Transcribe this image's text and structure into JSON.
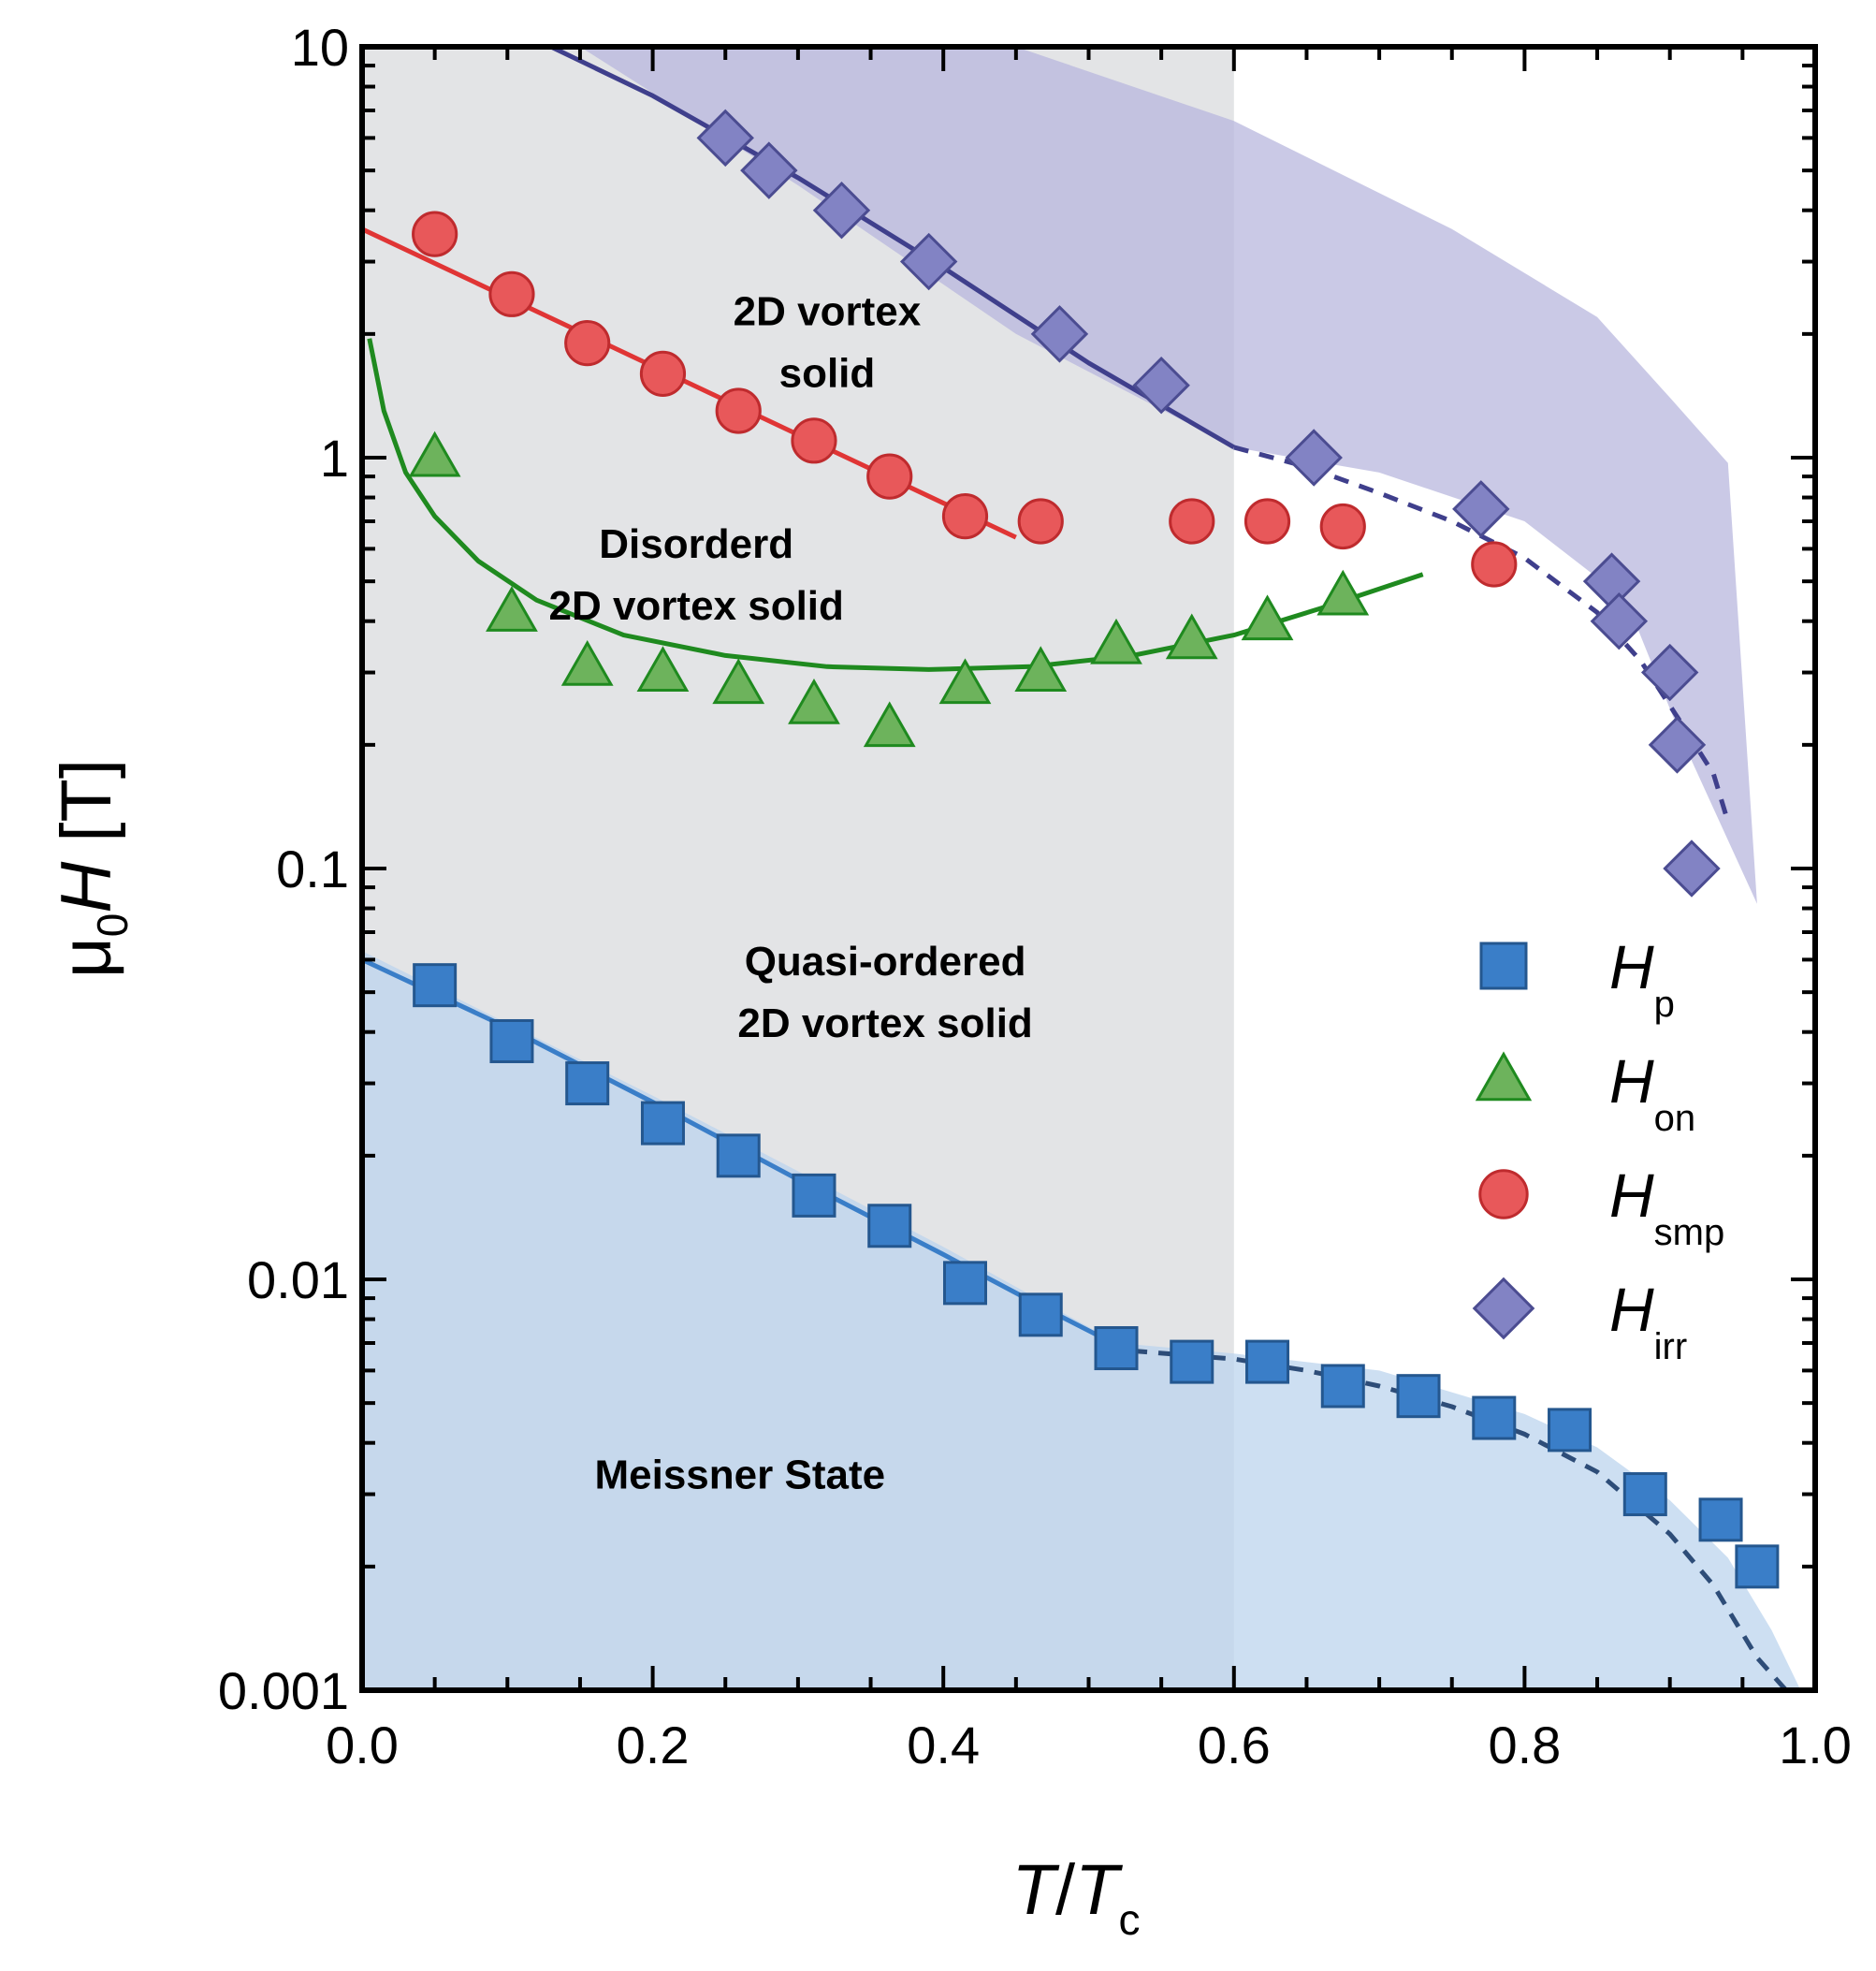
{
  "chart_data": {
    "type": "scatter",
    "xlabel": {
      "main": "T",
      "sep": "/",
      "main2": "T",
      "sub2": "c"
    },
    "ylabel": {
      "mu": "μ",
      "sub": "0",
      "main": "H",
      "unit": " [T]"
    },
    "xlim": [
      0,
      1
    ],
    "ylim": [
      0.001,
      10
    ],
    "yscale": "log",
    "x_ticks": [
      0.0,
      0.2,
      0.4,
      0.6,
      0.8,
      1.0
    ],
    "x_tick_labels": [
      "0.0",
      "0.2",
      "0.4",
      "0.6",
      "0.8",
      "1.0"
    ],
    "y_ticks": [
      0.001,
      0.01,
      0.1,
      1,
      10
    ],
    "y_tick_labels": [
      "0.001",
      "0.01",
      "0.1",
      "1",
      "10"
    ],
    "regions": [
      {
        "name": "vortex-solid",
        "lines": [
          "2D vortex",
          "solid"
        ],
        "x": 0.32,
        "y": 2.1
      },
      {
        "name": "disordered",
        "lines": [
          "Disorderd",
          "2D vortex solid"
        ],
        "x": 0.23,
        "y": 0.57
      },
      {
        "name": "quasi-ordered",
        "lines": [
          "Quasi-ordered",
          "2D vortex solid"
        ],
        "x": 0.36,
        "y": 0.055
      },
      {
        "name": "meissner",
        "lines": [
          "Meissner State"
        ],
        "x": 0.26,
        "y": 0.0031
      }
    ],
    "series": [
      {
        "name": "Hp",
        "label_main": "H",
        "label_sub": "p",
        "marker": "square",
        "color": "#3a7ec8",
        "edge": "#24578f",
        "x": [
          0.05,
          0.103,
          0.155,
          0.207,
          0.259,
          0.311,
          0.363,
          0.415,
          0.467,
          0.519,
          0.571,
          0.623,
          0.675,
          0.727,
          0.779,
          0.831,
          0.883,
          0.935,
          0.96
        ],
        "y": [
          0.052,
          0.038,
          0.03,
          0.024,
          0.02,
          0.016,
          0.0135,
          0.0098,
          0.0082,
          0.0068,
          0.0063,
          0.0063,
          0.0055,
          0.0052,
          0.0046,
          0.0043,
          0.003,
          0.0026,
          0.002
        ]
      },
      {
        "name": "Hon",
        "label_main": "H",
        "label_sub": "on",
        "marker": "triangle",
        "color": "#6db35c",
        "edge": "#1f8a1f",
        "x": [
          0.05,
          0.103,
          0.155,
          0.207,
          0.259,
          0.311,
          0.363,
          0.415,
          0.467,
          0.519,
          0.571,
          0.623,
          0.675
        ],
        "y": [
          1.0,
          0.42,
          0.31,
          0.3,
          0.28,
          0.25,
          0.22,
          0.28,
          0.3,
          0.35,
          0.36,
          0.4,
          0.46
        ]
      },
      {
        "name": "Hsmp",
        "label_main": "H",
        "label_sub": "smp",
        "marker": "circle",
        "color": "#e8585a",
        "edge": "#bf2b2e",
        "x": [
          0.05,
          0.103,
          0.155,
          0.207,
          0.259,
          0.311,
          0.363,
          0.415,
          0.467,
          0.571,
          0.623,
          0.675,
          0.779
        ],
        "y": [
          3.5,
          2.5,
          1.9,
          1.6,
          1.3,
          1.1,
          0.9,
          0.72,
          0.7,
          0.7,
          0.7,
          0.68,
          0.55
        ]
      },
      {
        "name": "Hirr",
        "label_main": "H",
        "label_sub": "irr",
        "marker": "diamond",
        "color": "#8283c4",
        "edge": "#4b4c91",
        "x": [
          0.25,
          0.28,
          0.33,
          0.39,
          0.48,
          0.55,
          0.655,
          0.77,
          0.86,
          0.865,
          0.9,
          0.905,
          0.915
        ],
        "y": [
          6.0,
          5.0,
          4.0,
          3.0,
          2.0,
          1.5,
          1.0,
          0.75,
          0.5,
          0.4,
          0.3,
          0.2,
          0.1
        ]
      }
    ],
    "fits": [
      {
        "name": "Hp-fit-solid",
        "color": "#3a7ec8",
        "dash": false,
        "x": [
          0.0,
          0.1,
          0.2,
          0.3,
          0.4,
          0.47,
          0.52
        ],
        "y": [
          0.06,
          0.041,
          0.027,
          0.0175,
          0.0115,
          0.0085,
          0.0069
        ]
      },
      {
        "name": "Hp-fit-dashed",
        "color": "#2e4d78",
        "dash": true,
        "x": [
          0.53,
          0.6,
          0.65,
          0.7,
          0.75,
          0.8,
          0.85,
          0.9,
          0.93,
          0.96,
          0.98
        ],
        "y": [
          0.0067,
          0.0064,
          0.006,
          0.0055,
          0.0049,
          0.0042,
          0.0034,
          0.0024,
          0.0018,
          0.0012,
          0.001
        ]
      },
      {
        "name": "Hon-fit",
        "color": "#1f8a1f",
        "dash": false,
        "x": [
          0.005,
          0.015,
          0.03,
          0.05,
          0.08,
          0.12,
          0.18,
          0.25,
          0.32,
          0.39,
          0.46,
          0.53,
          0.6,
          0.66,
          0.73
        ],
        "y": [
          1.95,
          1.3,
          0.92,
          0.72,
          0.56,
          0.45,
          0.37,
          0.33,
          0.31,
          0.305,
          0.31,
          0.33,
          0.37,
          0.43,
          0.52
        ]
      },
      {
        "name": "Hsmp-fit",
        "color": "#e03535",
        "dash": false,
        "x": [
          0.0,
          0.45
        ],
        "y": [
          3.6,
          0.64
        ]
      },
      {
        "name": "Hirr-fit-solid",
        "color": "#3f3f8c",
        "dash": false,
        "x": [
          0.13,
          0.2,
          0.3,
          0.4,
          0.5,
          0.6
        ],
        "y": [
          10.0,
          7.6,
          4.8,
          2.9,
          1.7,
          1.06
        ]
      },
      {
        "name": "Hirr-fit-dashed",
        "color": "#3f3f8c",
        "dash": true,
        "x": [
          0.6,
          0.65,
          0.7,
          0.75,
          0.8,
          0.85,
          0.88,
          0.91,
          0.93,
          0.94
        ],
        "y": [
          1.06,
          0.95,
          0.82,
          0.7,
          0.57,
          0.42,
          0.32,
          0.22,
          0.17,
          0.13
        ]
      }
    ],
    "shaded_bands": [
      {
        "name": "Hirr-band",
        "color": "#b8b7de",
        "upper_x": [
          0.13,
          0.25,
          0.45,
          0.6,
          0.75,
          0.85,
          0.9,
          0.94
        ],
        "upper_y": [
          10.0,
          10.0,
          10.0,
          6.6,
          3.6,
          2.2,
          1.4,
          0.97
        ],
        "lower_x": [
          0.96,
          0.91,
          0.87,
          0.8,
          0.7,
          0.6,
          0.45,
          0.3,
          0.15
        ],
        "lower_y": [
          0.082,
          0.2,
          0.45,
          0.7,
          0.92,
          1.06,
          2.0,
          4.6,
          10.0
        ]
      },
      {
        "name": "Hp-band",
        "color": "#bcd4ee",
        "upper_x": [
          0.0,
          0.2,
          0.4,
          0.52,
          0.6,
          0.7,
          0.8,
          0.85,
          0.9,
          0.94,
          0.97,
          0.99
        ],
        "upper_y": [
          0.063,
          0.028,
          0.012,
          0.007,
          0.0066,
          0.006,
          0.0047,
          0.0039,
          0.0029,
          0.0021,
          0.0014,
          0.001
        ]
      }
    ],
    "gray_region": {
      "x_start": 0.0,
      "x_end": 0.6,
      "color": "#e3e4e6"
    }
  }
}
